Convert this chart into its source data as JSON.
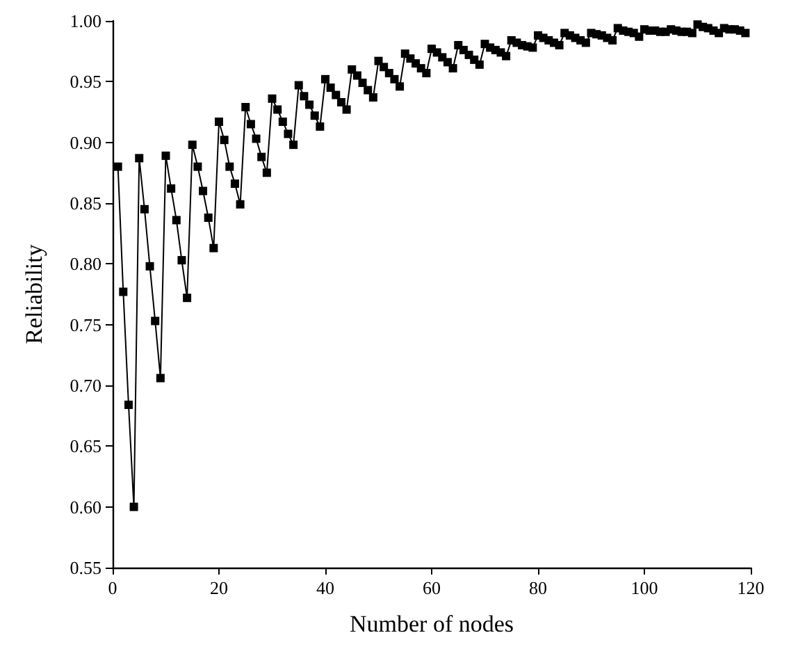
{
  "chart_data": {
    "type": "line",
    "xlabel": "Number of nodes",
    "ylabel": "Reliability",
    "marker": "square",
    "line_style": "solid",
    "grid": false,
    "xlim": [
      0,
      120
    ],
    "xticks": [
      0,
      20,
      40,
      60,
      80,
      100,
      120
    ],
    "ylim": [
      0.55,
      1.0
    ],
    "yticks": [
      {
        "value": 0.55,
        "label": "0.55"
      },
      {
        "value": 0.6,
        "label": "0.60"
      },
      {
        "value": 0.65,
        "label": "0.65"
      },
      {
        "value": 0.7,
        "label": "0.70"
      },
      {
        "value": 0.75,
        "label": "0.75"
      },
      {
        "value": 0.8,
        "label": "0.80"
      },
      {
        "value": 0.85,
        "label": "0.85"
      },
      {
        "value": 0.9,
        "label": "0.90"
      },
      {
        "value": 0.95,
        "label": "0.95"
      },
      {
        "value": 1.0,
        "label": "1.00"
      }
    ],
    "x": [
      1,
      2,
      3,
      4,
      5,
      6,
      7,
      8,
      9,
      10,
      11,
      12,
      13,
      14,
      15,
      16,
      17,
      18,
      19,
      20,
      21,
      22,
      23,
      24,
      25,
      26,
      27,
      28,
      29,
      30,
      31,
      32,
      33,
      34,
      35,
      36,
      37,
      38,
      39,
      40,
      41,
      42,
      43,
      44,
      45,
      46,
      47,
      48,
      49,
      50,
      51,
      52,
      53,
      54,
      55,
      56,
      57,
      58,
      59,
      60,
      61,
      62,
      63,
      64,
      65,
      66,
      67,
      68,
      69,
      70,
      71,
      72,
      73,
      74,
      75,
      76,
      77,
      78,
      79,
      80,
      81,
      82,
      83,
      84,
      85,
      86,
      87,
      88,
      89,
      90,
      91,
      92,
      93,
      94,
      95,
      96,
      97,
      98,
      99,
      100,
      101,
      102,
      103,
      104,
      105,
      106,
      107,
      108,
      109,
      110,
      111,
      112,
      113,
      114,
      115,
      116,
      117,
      118,
      119
    ],
    "series": [
      {
        "color": "#000000",
        "values": [
          0.88,
          0.777,
          0.684,
          0.6,
          0.887,
          0.845,
          0.798,
          0.753,
          0.706,
          0.889,
          0.862,
          0.836,
          0.803,
          0.772,
          0.898,
          0.88,
          0.86,
          0.838,
          0.813,
          0.917,
          0.902,
          0.88,
          0.866,
          0.849,
          0.929,
          0.915,
          0.903,
          0.888,
          0.875,
          0.936,
          0.927,
          0.917,
          0.907,
          0.898,
          0.947,
          0.938,
          0.931,
          0.922,
          0.913,
          0.952,
          0.945,
          0.939,
          0.933,
          0.927,
          0.96,
          0.955,
          0.949,
          0.943,
          0.937,
          0.967,
          0.962,
          0.957,
          0.952,
          0.946,
          0.973,
          0.969,
          0.965,
          0.961,
          0.957,
          0.977,
          0.974,
          0.97,
          0.966,
          0.961,
          0.98,
          0.976,
          0.972,
          0.968,
          0.964,
          0.981,
          0.978,
          0.976,
          0.974,
          0.971,
          0.984,
          0.982,
          0.98,
          0.979,
          0.978,
          0.988,
          0.986,
          0.984,
          0.982,
          0.98,
          0.99,
          0.988,
          0.986,
          0.984,
          0.982,
          0.99,
          0.989,
          0.988,
          0.986,
          0.984,
          0.994,
          0.992,
          0.991,
          0.99,
          0.987,
          0.993,
          0.992,
          0.992,
          0.991,
          0.991,
          0.993,
          0.992,
          0.991,
          0.991,
          0.99,
          0.997,
          0.995,
          0.994,
          0.992,
          0.99,
          0.994,
          0.993,
          0.993,
          0.992,
          0.99
        ]
      }
    ]
  }
}
